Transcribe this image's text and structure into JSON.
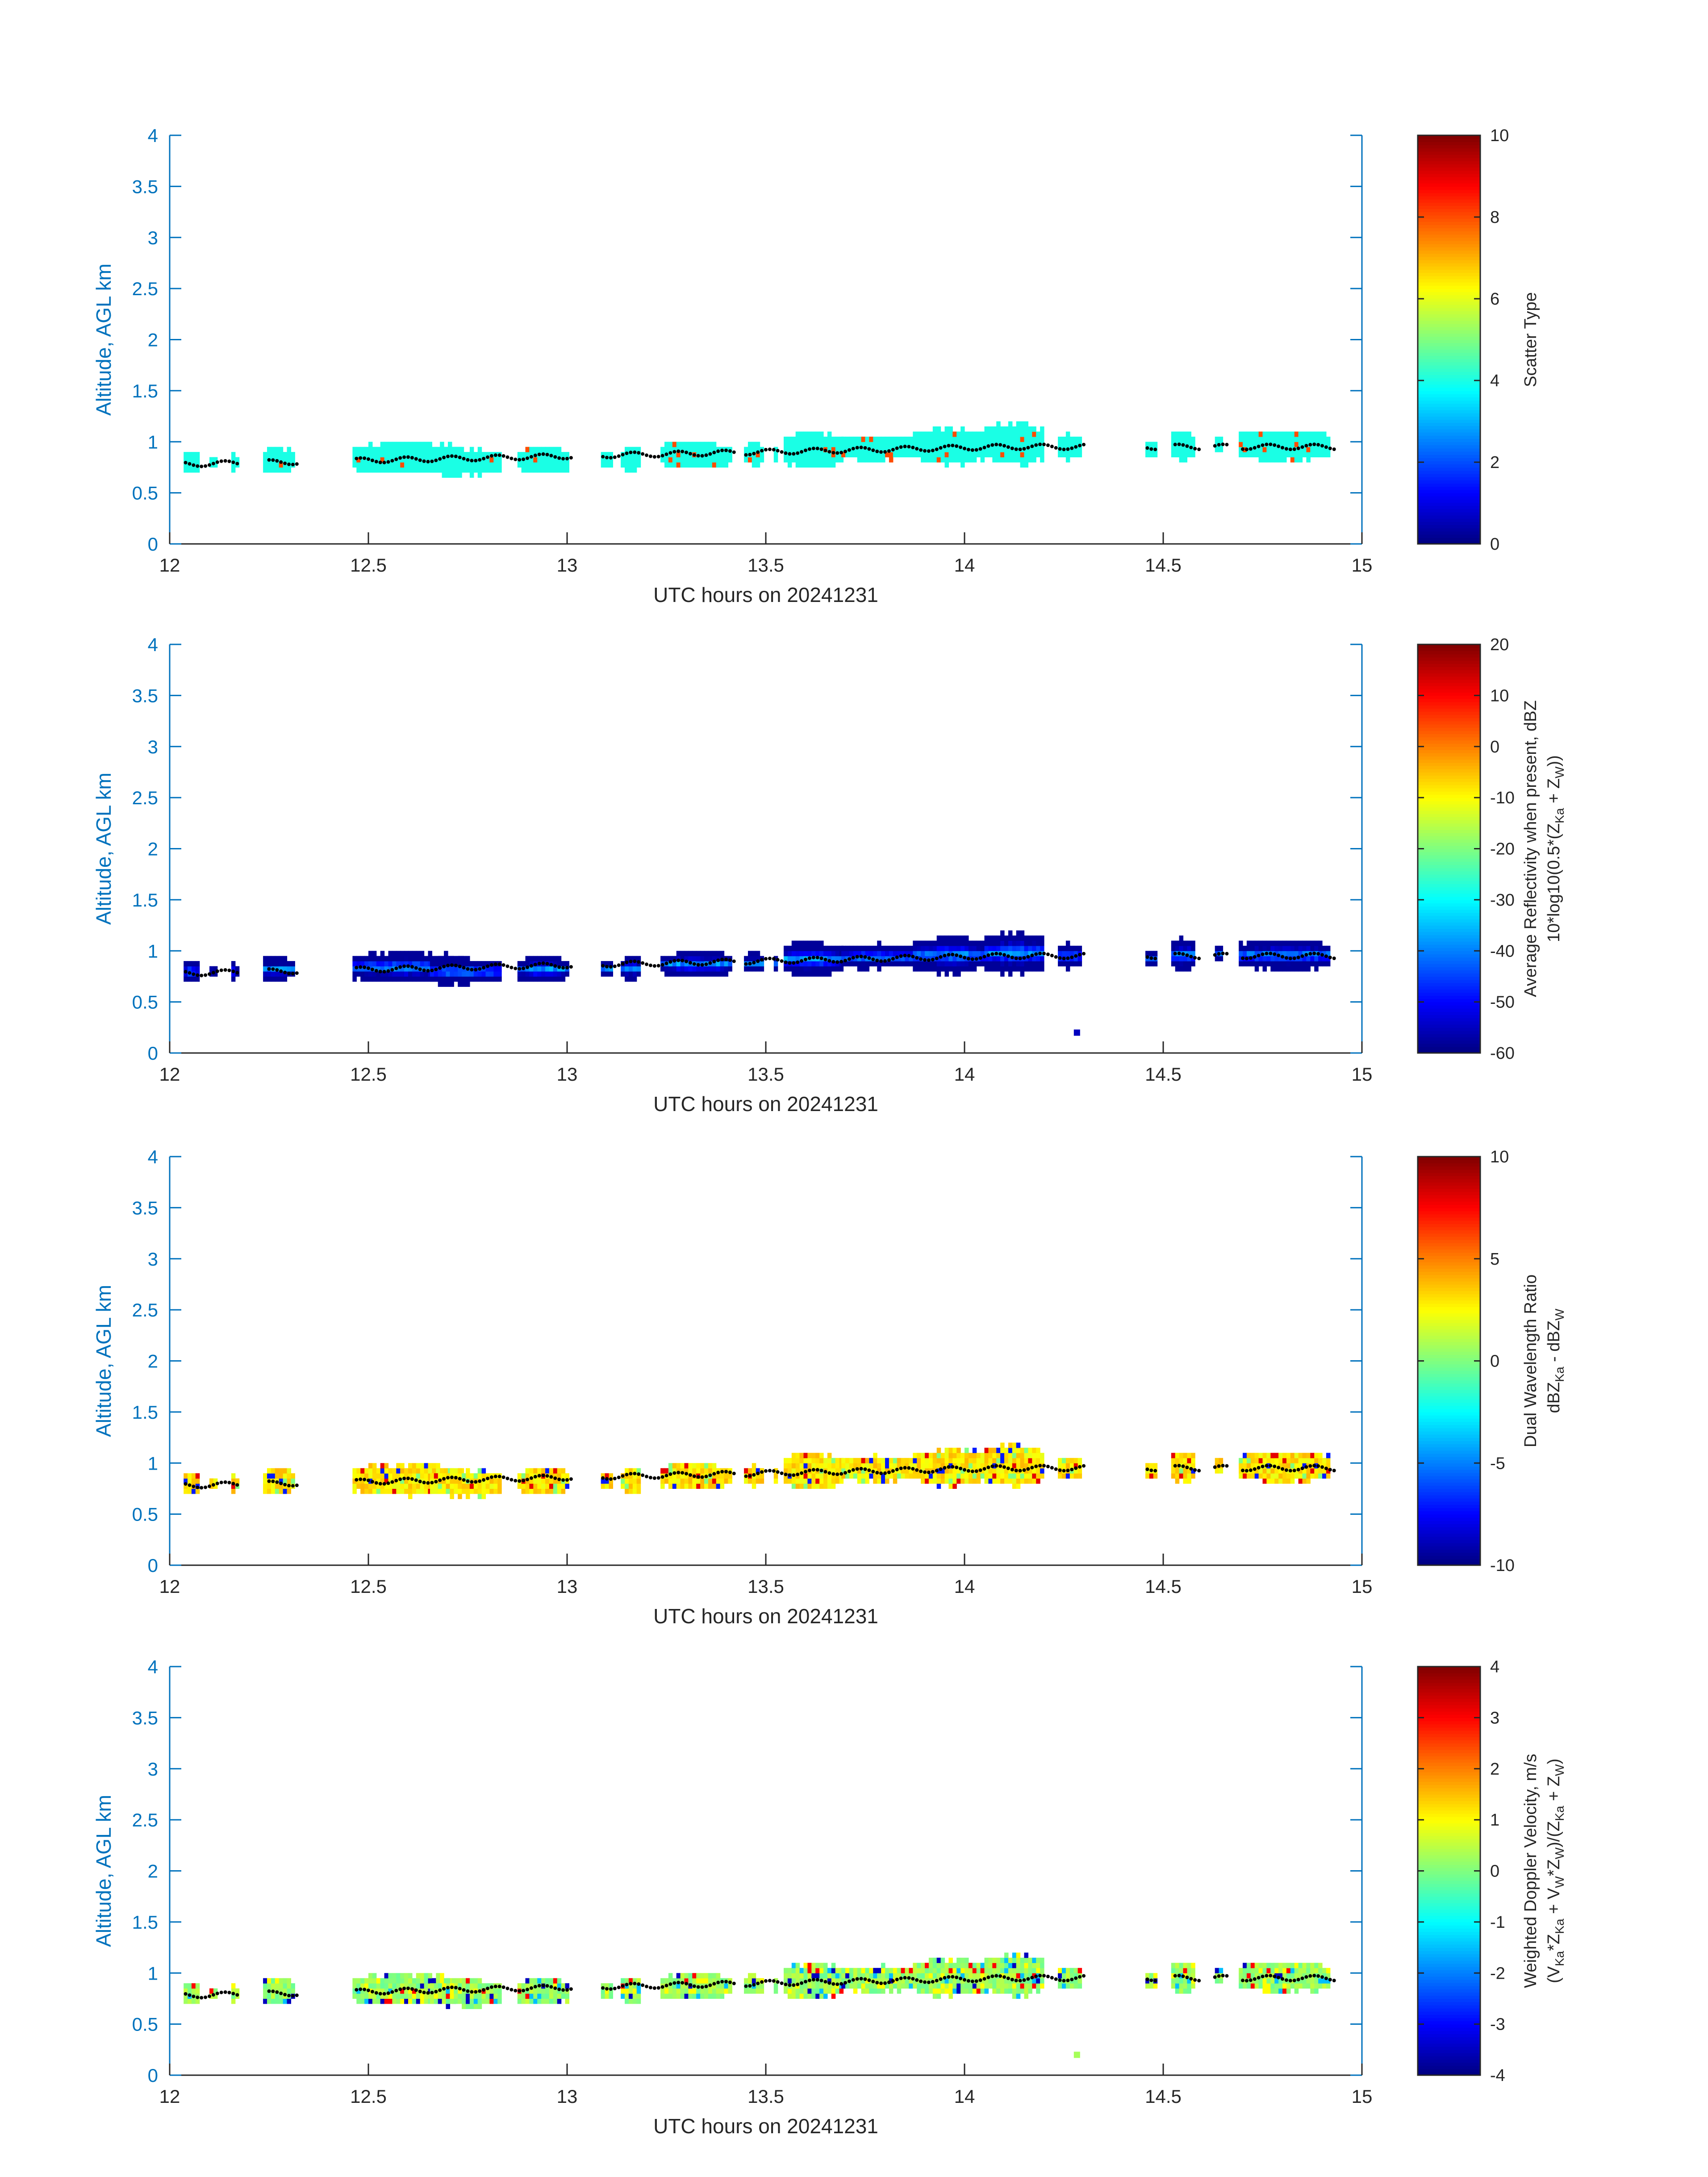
{
  "chart_data": [
    {
      "type": "heatmap",
      "xlabel": "UTC hours on 20241231",
      "ylabel": "Altitude, AGL km",
      "xlim": [
        12,
        15
      ],
      "ylim": [
        0,
        4
      ],
      "xticks": [
        "12",
        "12.5",
        "13",
        "13.5",
        "14",
        "14.5",
        "15"
      ],
      "yticks": [
        "0",
        "0.5",
        "1",
        "1.5",
        "2",
        "2.5",
        "3",
        "3.5",
        "4"
      ],
      "colorbar": {
        "label_lines": [
          "Scatter Type"
        ],
        "range": [
          0,
          10
        ],
        "ticks": [
          "0",
          "2",
          "4",
          "6",
          "8",
          "10"
        ],
        "colormap": "jet"
      },
      "value_desc": "mostly 4 (cyan) with a few 8 (red) pixels",
      "dominant_value": 4,
      "outlier_value": 8
    },
    {
      "type": "heatmap",
      "xlabel": "UTC hours on 20241231",
      "ylabel": "Altitude, AGL km",
      "xlim": [
        12,
        15
      ],
      "ylim": [
        0,
        4
      ],
      "xticks": [
        "12",
        "12.5",
        "13",
        "13.5",
        "14",
        "14.5",
        "15"
      ],
      "yticks": [
        "0",
        "0.5",
        "1",
        "1.5",
        "2",
        "2.5",
        "3",
        "3.5",
        "4"
      ],
      "colorbar": {
        "label_lines": [
          "Average Reflectivity when present, dBZ",
          "10*log10(0.5*(Zₖₐ + Zᵂ))"
        ],
        "label_line1": "Average Reflectivity when present, dBZ",
        "label_line2_parts": [
          "10*log10(0.5*(Z",
          "Ka",
          " + Z",
          "W",
          "))"
        ],
        "range": [
          -60,
          20
        ],
        "ticks": [
          "-60",
          "-50",
          "-40",
          "-30",
          "-20",
          "-10",
          "0",
          "10",
          "20"
        ],
        "colormap": "jet"
      },
      "value_desc": "edges about -60 dBZ, cores about -35 dBZ",
      "edge_value": -58,
      "core_value": -35
    },
    {
      "type": "heatmap",
      "xlabel": "UTC hours on 20241231",
      "ylabel": "Altitude, AGL km",
      "xlim": [
        12,
        15
      ],
      "ylim": [
        0,
        4
      ],
      "xticks": [
        "12",
        "12.5",
        "13",
        "13.5",
        "14",
        "14.5",
        "15"
      ],
      "yticks": [
        "0",
        "0.5",
        "1",
        "1.5",
        "2",
        "2.5",
        "3",
        "3.5",
        "4"
      ],
      "colorbar": {
        "label_line1": "Dual Wavelength Ratio",
        "label_line2_parts": [
          "dBZ",
          "Ka",
          " - dBZ",
          "W",
          ""
        ],
        "range": [
          -10,
          10
        ],
        "ticks": [
          "-10",
          "-5",
          "0",
          "5",
          "10"
        ],
        "colormap": "jet"
      },
      "value_desc": "mostly 2 to 4 dB (yellow), scattered -6 and 8",
      "dominant_value": 3,
      "outlier_values": [
        -7,
        8,
        0
      ]
    },
    {
      "type": "heatmap",
      "xlabel": "UTC hours on 20241231",
      "ylabel": "Altitude, AGL km",
      "xlim": [
        12,
        15
      ],
      "ylim": [
        0,
        4
      ],
      "xticks": [
        "12",
        "12.5",
        "13",
        "13.5",
        "14",
        "14.5",
        "15"
      ],
      "yticks": [
        "0",
        "0.5",
        "1",
        "1.5",
        "2",
        "2.5",
        "3",
        "3.5",
        "4"
      ],
      "colorbar": {
        "label_line1": "Weighted Doppler Velocity, m/s",
        "label_line2_parts": [
          "(V",
          "Ka",
          "*Z",
          "Ka",
          " + V",
          "W",
          "*Z",
          "W",
          ")/(Z",
          "Ka",
          " + Z",
          "W",
          ")"
        ],
        "range": [
          -4,
          4
        ],
        "ticks": [
          "-4",
          "-3",
          "-2",
          "-1",
          "0",
          "1",
          "2",
          "3",
          "4"
        ],
        "colormap": "jet"
      },
      "value_desc": "mostly about 0 to 0.5 m/s (green), scattered -1.5 and 3",
      "dominant_value": 0.2,
      "outlier_values": [
        -3.5,
        3,
        -1.5,
        1
      ]
    }
  ],
  "cloud_segments": [
    {
      "t0": 12.035,
      "t1": 12.075,
      "alt": 0.8,
      "h": 0.15
    },
    {
      "t0": 12.1,
      "t1": 12.115,
      "alt": 0.8,
      "h": 0.1
    },
    {
      "t0": 12.155,
      "t1": 12.17,
      "alt": 0.8,
      "h": 0.12
    },
    {
      "t0": 12.235,
      "t1": 12.31,
      "alt": 0.82,
      "h": 0.2
    },
    {
      "t0": 12.46,
      "t1": 12.735,
      "alt": 0.84,
      "h": 0.25
    },
    {
      "t0": 12.655,
      "t1": 12.83,
      "alt": 0.8,
      "h": 0.22
    },
    {
      "t0": 12.875,
      "t1": 13.0,
      "alt": 0.82,
      "h": 0.2
    },
    {
      "t0": 13.085,
      "t1": 13.11,
      "alt": 0.83,
      "h": 0.12
    },
    {
      "t0": 13.135,
      "t1": 13.185,
      "alt": 0.83,
      "h": 0.2
    },
    {
      "t0": 13.235,
      "t1": 13.415,
      "alt": 0.87,
      "h": 0.2
    },
    {
      "t0": 13.445,
      "t1": 13.495,
      "alt": 0.88,
      "h": 0.15
    },
    {
      "t0": 13.52,
      "t1": 13.53,
      "alt": 0.88,
      "h": 0.1
    },
    {
      "t0": 13.545,
      "t1": 13.69,
      "alt": 0.92,
      "h": 0.3
    },
    {
      "t0": 13.69,
      "t1": 13.87,
      "alt": 0.94,
      "h": 0.2
    },
    {
      "t0": 13.87,
      "t1": 14.05,
      "alt": 0.96,
      "h": 0.3
    },
    {
      "t0": 14.05,
      "t1": 14.2,
      "alt": 0.98,
      "h": 0.35
    },
    {
      "t0": 14.235,
      "t1": 14.295,
      "alt": 0.95,
      "h": 0.18
    },
    {
      "t0": 14.455,
      "t1": 14.48,
      "alt": 0.93,
      "h": 0.1
    },
    {
      "t0": 14.52,
      "t1": 14.58,
      "alt": 0.96,
      "h": 0.25
    },
    {
      "t0": 14.63,
      "t1": 14.65,
      "alt": 0.97,
      "h": 0.08
    },
    {
      "t0": 14.69,
      "t1": 14.92,
      "alt": 0.96,
      "h": 0.25
    }
  ],
  "isolated_points": [
    {
      "t": 14.275,
      "alt": 0.2
    }
  ],
  "cloud_base_dots": {
    "alt_base": 0.78,
    "alt_rise": 0.17,
    "t_start": 12.04,
    "t_end": 14.93,
    "t_step": 0.01,
    "gaps": [
      [
        12.175,
        12.24
      ],
      [
        12.32,
        12.46
      ],
      [
        13.01,
        13.08
      ],
      [
        13.42,
        13.44
      ],
      [
        14.3,
        14.45
      ],
      [
        14.485,
        14.52
      ],
      [
        14.59,
        14.62
      ],
      [
        14.66,
        14.69
      ]
    ]
  }
}
